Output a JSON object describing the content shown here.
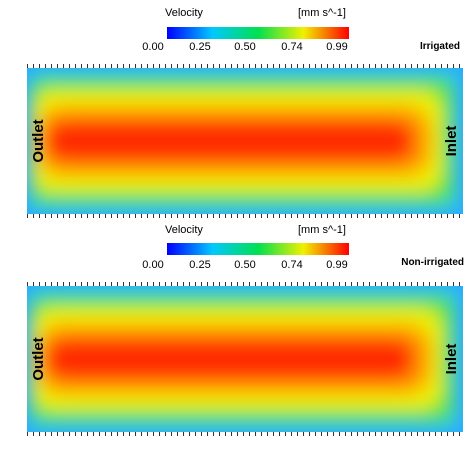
{
  "panels": [
    {
      "legend": {
        "title": "Velocity",
        "unit": "[mm s^-1]",
        "ticks": [
          "0.00",
          "0.25",
          "0.50",
          "0.74",
          "0.99"
        ]
      },
      "label": "Irrigated",
      "left": "Outlet",
      "right": "Inlet"
    },
    {
      "legend": {
        "title": "Velocity",
        "unit": "[mm s^-1]",
        "ticks": [
          "0.00",
          "0.25",
          "0.50",
          "0.74",
          "0.99"
        ]
      },
      "label": "Non-irrigated",
      "left": "Outlet",
      "right": "Inlet"
    }
  ]
}
